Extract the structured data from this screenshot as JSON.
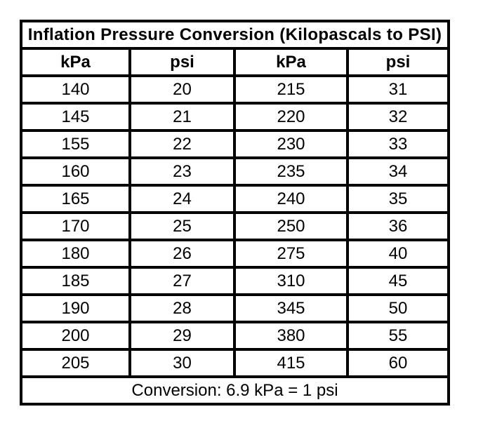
{
  "page": {
    "background": "#ffffff",
    "text_color": "#000000",
    "border_color": "#000000"
  },
  "table": {
    "title": "Inflation Pressure Conversion (Kilopascals to PSI)",
    "headers": [
      "kPa",
      "psi",
      "kPa",
      "psi"
    ],
    "rows": [
      [
        "140",
        "20",
        "215",
        "31"
      ],
      [
        "145",
        "21",
        "220",
        "32"
      ],
      [
        "155",
        "22",
        "230",
        "33"
      ],
      [
        "160",
        "23",
        "235",
        "34"
      ],
      [
        "165",
        "24",
        "240",
        "35"
      ],
      [
        "170",
        "25",
        "250",
        "36"
      ],
      [
        "180",
        "26",
        "275",
        "40"
      ],
      [
        "185",
        "27",
        "310",
        "45"
      ],
      [
        "190",
        "28",
        "345",
        "50"
      ],
      [
        "200",
        "29",
        "380",
        "55"
      ],
      [
        "205",
        "30",
        "415",
        "60"
      ]
    ],
    "footer": "Conversion: 6.9 kPa = 1 psi"
  }
}
